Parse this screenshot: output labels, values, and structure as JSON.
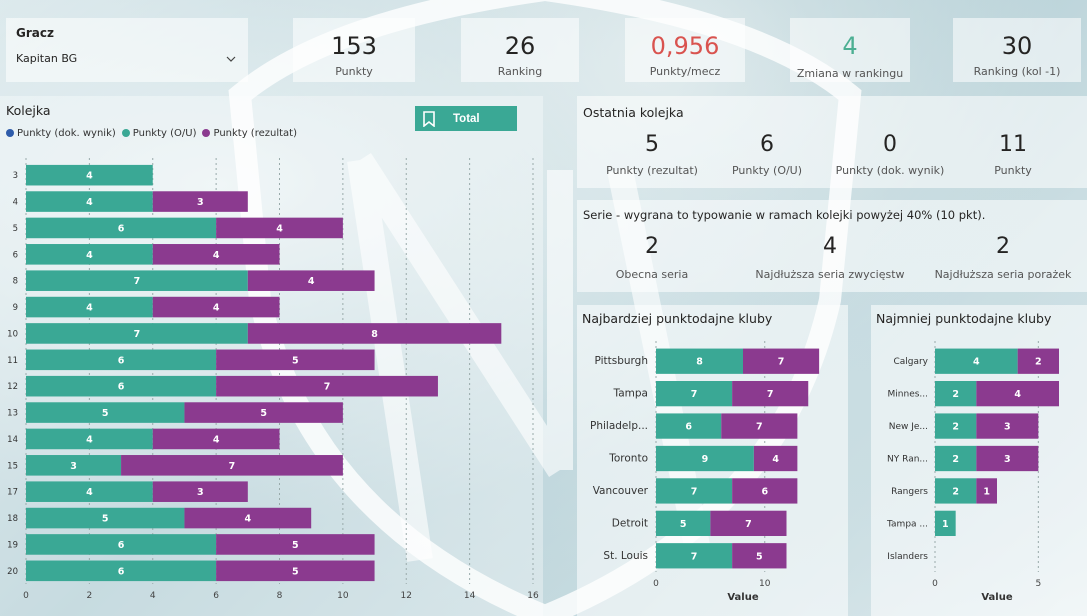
{
  "slicer": {
    "title": "Gracz",
    "value": "Kapitan BG"
  },
  "kpis": [
    {
      "value": "153",
      "label": "Punkty",
      "color": "#252423"
    },
    {
      "value": "26",
      "label": "Ranking",
      "color": "#252423"
    },
    {
      "value": "0,956",
      "label": "Punkty/mecz",
      "color": "#d9534f"
    },
    {
      "value": "4",
      "label": "Zmiana w rankingu",
      "color": "#4caf93"
    },
    {
      "value": "30",
      "label": "Ranking (kol -1)",
      "color": "#252423"
    }
  ],
  "kolejka": {
    "title": "Kolejka",
    "total_label": "Total",
    "legend": [
      {
        "label": "Punkty (dok. wynik)",
        "color": "#2e5caa"
      },
      {
        "label": "Punkty (O/U)",
        "color": "#3aa895"
      },
      {
        "label": "Punkty (rezultat)",
        "color": "#8b3a8f"
      }
    ]
  },
  "ostatnia": {
    "title": "Ostatnia kolejka",
    "items": [
      {
        "value": "5",
        "label": "Punkty (rezultat)"
      },
      {
        "value": "6",
        "label": "Punkty (O/U)"
      },
      {
        "value": "0",
        "label": "Punkty (dok. wynik)"
      },
      {
        "value": "11",
        "label": "Punkty"
      }
    ]
  },
  "serie": {
    "title": "Serie - wygrana to typowanie w ramach kolejki powyżej 40% (10 pkt).",
    "items": [
      {
        "value": "2",
        "label": "Obecna seria"
      },
      {
        "value": "4",
        "label": "Najdłuższa seria zwycięstw"
      },
      {
        "value": "2",
        "label": "Najdłuższa seria porażek"
      }
    ]
  },
  "chart_data": [
    {
      "name": "kolejka",
      "type": "bar",
      "orientation": "horizontal",
      "stacked": true,
      "categories": [
        "3",
        "4",
        "5",
        "6",
        "8",
        "9",
        "10",
        "11",
        "12",
        "13",
        "14",
        "15",
        "17",
        "18",
        "19",
        "20"
      ],
      "series": [
        {
          "name": "Punkty (O/U)",
          "color": "#3aa895",
          "values": [
            4,
            4,
            6,
            4,
            7,
            4,
            7,
            6,
            6,
            5,
            4,
            3,
            4,
            5,
            6,
            6
          ]
        },
        {
          "name": "Punkty (rezultat)",
          "color": "#8b3a8f",
          "values": [
            0,
            3,
            4,
            4,
            4,
            4,
            8,
            5,
            7,
            5,
            4,
            7,
            3,
            4,
            5,
            5
          ]
        }
      ],
      "xticks": [
        "0",
        "2",
        "4",
        "6",
        "8",
        "10",
        "12",
        "14",
        "16"
      ],
      "xlim": [
        0,
        16
      ]
    },
    {
      "name": "najbardziej",
      "title": "Najbardziej punktodajne kluby",
      "type": "bar",
      "orientation": "horizontal",
      "stacked": true,
      "categories": [
        "Pittsburgh",
        "Tampa",
        "Philadelp...",
        "Toronto",
        "Vancouver",
        "Detroit",
        "St. Louis"
      ],
      "series": [
        {
          "name": "Punkty (O/U)",
          "color": "#3aa895",
          "values": [
            8,
            7,
            6,
            9,
            7,
            5,
            7
          ]
        },
        {
          "name": "Punkty (rezultat)",
          "color": "#8b3a8f",
          "values": [
            7,
            7,
            7,
            4,
            6,
            7,
            5
          ]
        }
      ],
      "xticks": [
        "0",
        "10"
      ],
      "xlabel": "Value",
      "xlim": [
        0,
        16
      ]
    },
    {
      "name": "najmniej",
      "title": "Najmniej punktodajne kluby",
      "type": "bar",
      "orientation": "horizontal",
      "stacked": true,
      "categories": [
        "Calgary",
        "Minnes...",
        "New Je...",
        "NY Ran...",
        "Rangers",
        "Tampa ...",
        "Islanders"
      ],
      "series": [
        {
          "name": "Punkty (O/U)",
          "color": "#3aa895",
          "values": [
            4,
            2,
            2,
            2,
            2,
            1,
            0
          ]
        },
        {
          "name": "Punkty (rezultat)",
          "color": "#8b3a8f",
          "values": [
            2,
            4,
            3,
            3,
            1,
            0,
            0
          ]
        }
      ],
      "xticks": [
        "0",
        "5"
      ],
      "xlabel": "Value",
      "xlim": [
        0,
        6
      ]
    }
  ]
}
